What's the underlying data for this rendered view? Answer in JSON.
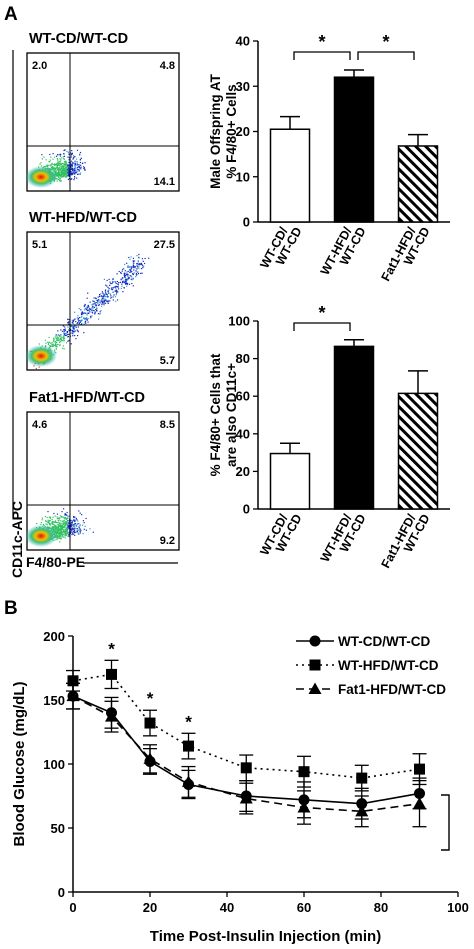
{
  "panel_labels": {
    "a": "A",
    "b": "B"
  },
  "flow": {
    "y_axis_label": "CD11c-APC",
    "x_axis_label": "F4/80-PE",
    "plots": [
      {
        "title": "WT-CD/WT-CD",
        "q_ul": "2.0",
        "q_ur": "4.8",
        "q_lr": "14.1"
      },
      {
        "title": "WT-HFD/WT-CD",
        "q_ul": "5.1",
        "q_ur": "27.5",
        "q_lr": "5.7"
      },
      {
        "title": "Fat1-HFD/WT-CD",
        "q_ul": "4.6",
        "q_ur": "8.5",
        "q_lr": "9.2"
      }
    ]
  },
  "chart_data": [
    {
      "type": "bar",
      "ylabel_lines": [
        "Male Offspring AT",
        "% F4/80+ Cells"
      ],
      "ylim": [
        0,
        40
      ],
      "yticks": [
        0,
        10,
        20,
        30,
        40
      ],
      "categories": [
        [
          "WT-CD/",
          "WT-CD"
        ],
        [
          "WT-HFD/",
          "WT-CD"
        ],
        [
          "Fat1-HFD/",
          "WT-CD"
        ]
      ],
      "values": [
        20.5,
        32,
        16.8
      ],
      "errors": [
        2.8,
        1.6,
        2.5
      ],
      "fills": [
        "white",
        "black",
        "hatched"
      ],
      "significance": [
        {
          "from": 0,
          "to": 1,
          "label": "*"
        },
        {
          "from": 1,
          "to": 2,
          "label": "*"
        }
      ]
    },
    {
      "type": "bar",
      "ylabel_lines": [
        "% F4/80+ Cells that",
        "are also CD11c+"
      ],
      "ylim": [
        0,
        100
      ],
      "yticks": [
        0,
        20,
        40,
        60,
        80,
        100
      ],
      "categories": [
        [
          "WT-CD/",
          "WT-CD"
        ],
        [
          "WT-HFD/",
          "WT-CD"
        ],
        [
          "Fat1-HFD/",
          "WT-CD"
        ]
      ],
      "values": [
        29.5,
        86.5,
        61.5
      ],
      "errors": [
        5.5,
        3.5,
        12
      ],
      "fills": [
        "white",
        "black",
        "hatched"
      ],
      "significance": [
        {
          "from": 0,
          "to": 1,
          "label": "*"
        }
      ]
    },
    {
      "type": "line",
      "xlabel": "Time Post-Insulin Injection (min)",
      "ylabel": "Blood Glucose (mg/dL)",
      "xlim": [
        0,
        100
      ],
      "ylim": [
        0,
        200
      ],
      "xticks": [
        0,
        20,
        40,
        60,
        80,
        100
      ],
      "yticks": [
        0,
        50,
        100,
        150,
        200
      ],
      "x": [
        0,
        10,
        20,
        30,
        45,
        60,
        75,
        90
      ],
      "series": [
        {
          "name": "WT-CD/WT-CD",
          "marker": "circle",
          "dash": "solid",
          "values": [
            153,
            140,
            102,
            84,
            75,
            72,
            69,
            77
          ],
          "errors": [
            10,
            12,
            10,
            11,
            12,
            14,
            12,
            12
          ]
        },
        {
          "name": "WT-HFD/WT-CD",
          "marker": "square",
          "dash": "dotted",
          "values": [
            165,
            170,
            132,
            114,
            97,
            94,
            89,
            96
          ],
          "errors": [
            8,
            11,
            10,
            10,
            10,
            12,
            10,
            12
          ]
        },
        {
          "name": "Fat1-HFD/WT-CD",
          "marker": "triangle",
          "dash": "dashed",
          "values": [
            153,
            137,
            104,
            86,
            73,
            66,
            63,
            69
          ],
          "errors": [
            10,
            12,
            11,
            12,
            12,
            13,
            12,
            18
          ]
        }
      ],
      "significance_x": [
        10,
        20,
        30
      ],
      "significance_label": "*"
    }
  ]
}
